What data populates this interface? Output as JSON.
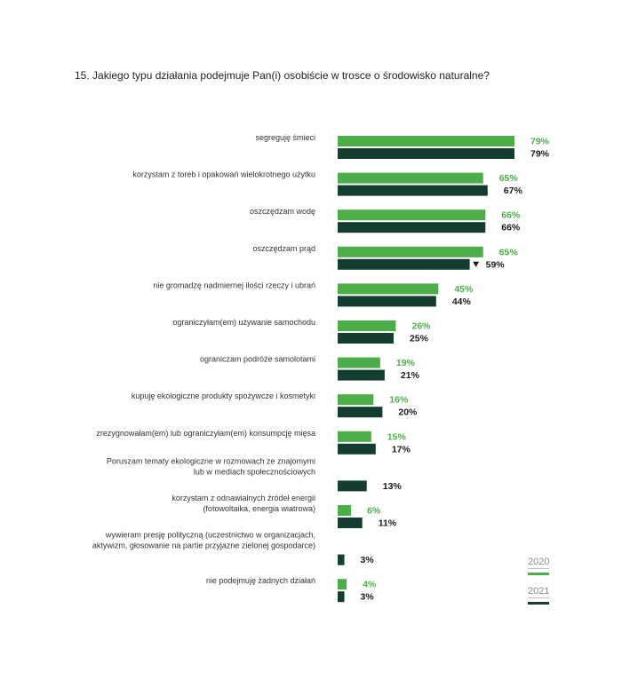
{
  "question": "15. Jakiego typu działania podejmuje Pan(i) osobiście w trosce o środowisko naturalne?",
  "colors": {
    "2020": "#4cae48",
    "2021": "#123d30",
    "label": "#333333",
    "legend_text": "#8a8a8a"
  },
  "chart_data": {
    "type": "bar",
    "orientation": "horizontal",
    "xlim": [
      0,
      79
    ],
    "categories": [
      [
        "segreguję śmieci"
      ],
      [
        "korzystam z toreb i opakowań wielokrotnego użytku"
      ],
      [
        "oszczędzam wodę"
      ],
      [
        "oszczędzam prąd"
      ],
      [
        "nie gromadzę nadmiernej ilości rzeczy i ubrań"
      ],
      [
        "ograniczyłam(em) używanie samochodu"
      ],
      [
        "ograniczam podróże samolotami"
      ],
      [
        "kupuję ekologiczne produkty spożywcze i kosmetyki"
      ],
      [
        "zrezygnowałam(em) lub ograniczyłam(em) konsumpcję mięsa"
      ],
      [
        "Poruszam tematy ekologiczne w rozmowach ze znajomymi",
        "lub w mediach społecznościowych"
      ],
      [
        "korzystam z odnawialnych źródeł energii",
        "(fotowoltaika, energia wiatrowa)"
      ],
      [
        "wywieram presję polityczną (uczestnictwo w organizacjach,",
        "aktywizm, głosowanie na partie przyjazne zielonej gospodarce)"
      ],
      [
        "nie podejmuję żadnych działań"
      ]
    ],
    "series": [
      {
        "name": "2020",
        "values": [
          79,
          65,
          66,
          65,
          45,
          26,
          19,
          16,
          15,
          null,
          6,
          null,
          4
        ],
        "labels": [
          "79%",
          "65%",
          "66%",
          "65%",
          "45%",
          "26%",
          "19%",
          "16%",
          "15%",
          null,
          "6%",
          null,
          "4%"
        ]
      },
      {
        "name": "2021",
        "values": [
          79,
          67,
          66,
          59,
          44,
          25,
          21,
          20,
          17,
          13,
          11,
          3,
          3
        ],
        "labels": [
          "79%",
          "67%",
          "66%",
          "59%",
          "44%",
          "25%",
          "21%",
          "20%",
          "17%",
          "13%",
          "11%",
          "3%",
          "3%"
        ]
      }
    ],
    "annotations": [
      {
        "category_index": 3,
        "series": "2021",
        "marker": "down-triangle",
        "meaning": "decrease"
      }
    ],
    "legend": {
      "position": "bottom-right",
      "entries": [
        "2020",
        "2021"
      ]
    },
    "grid": false
  }
}
